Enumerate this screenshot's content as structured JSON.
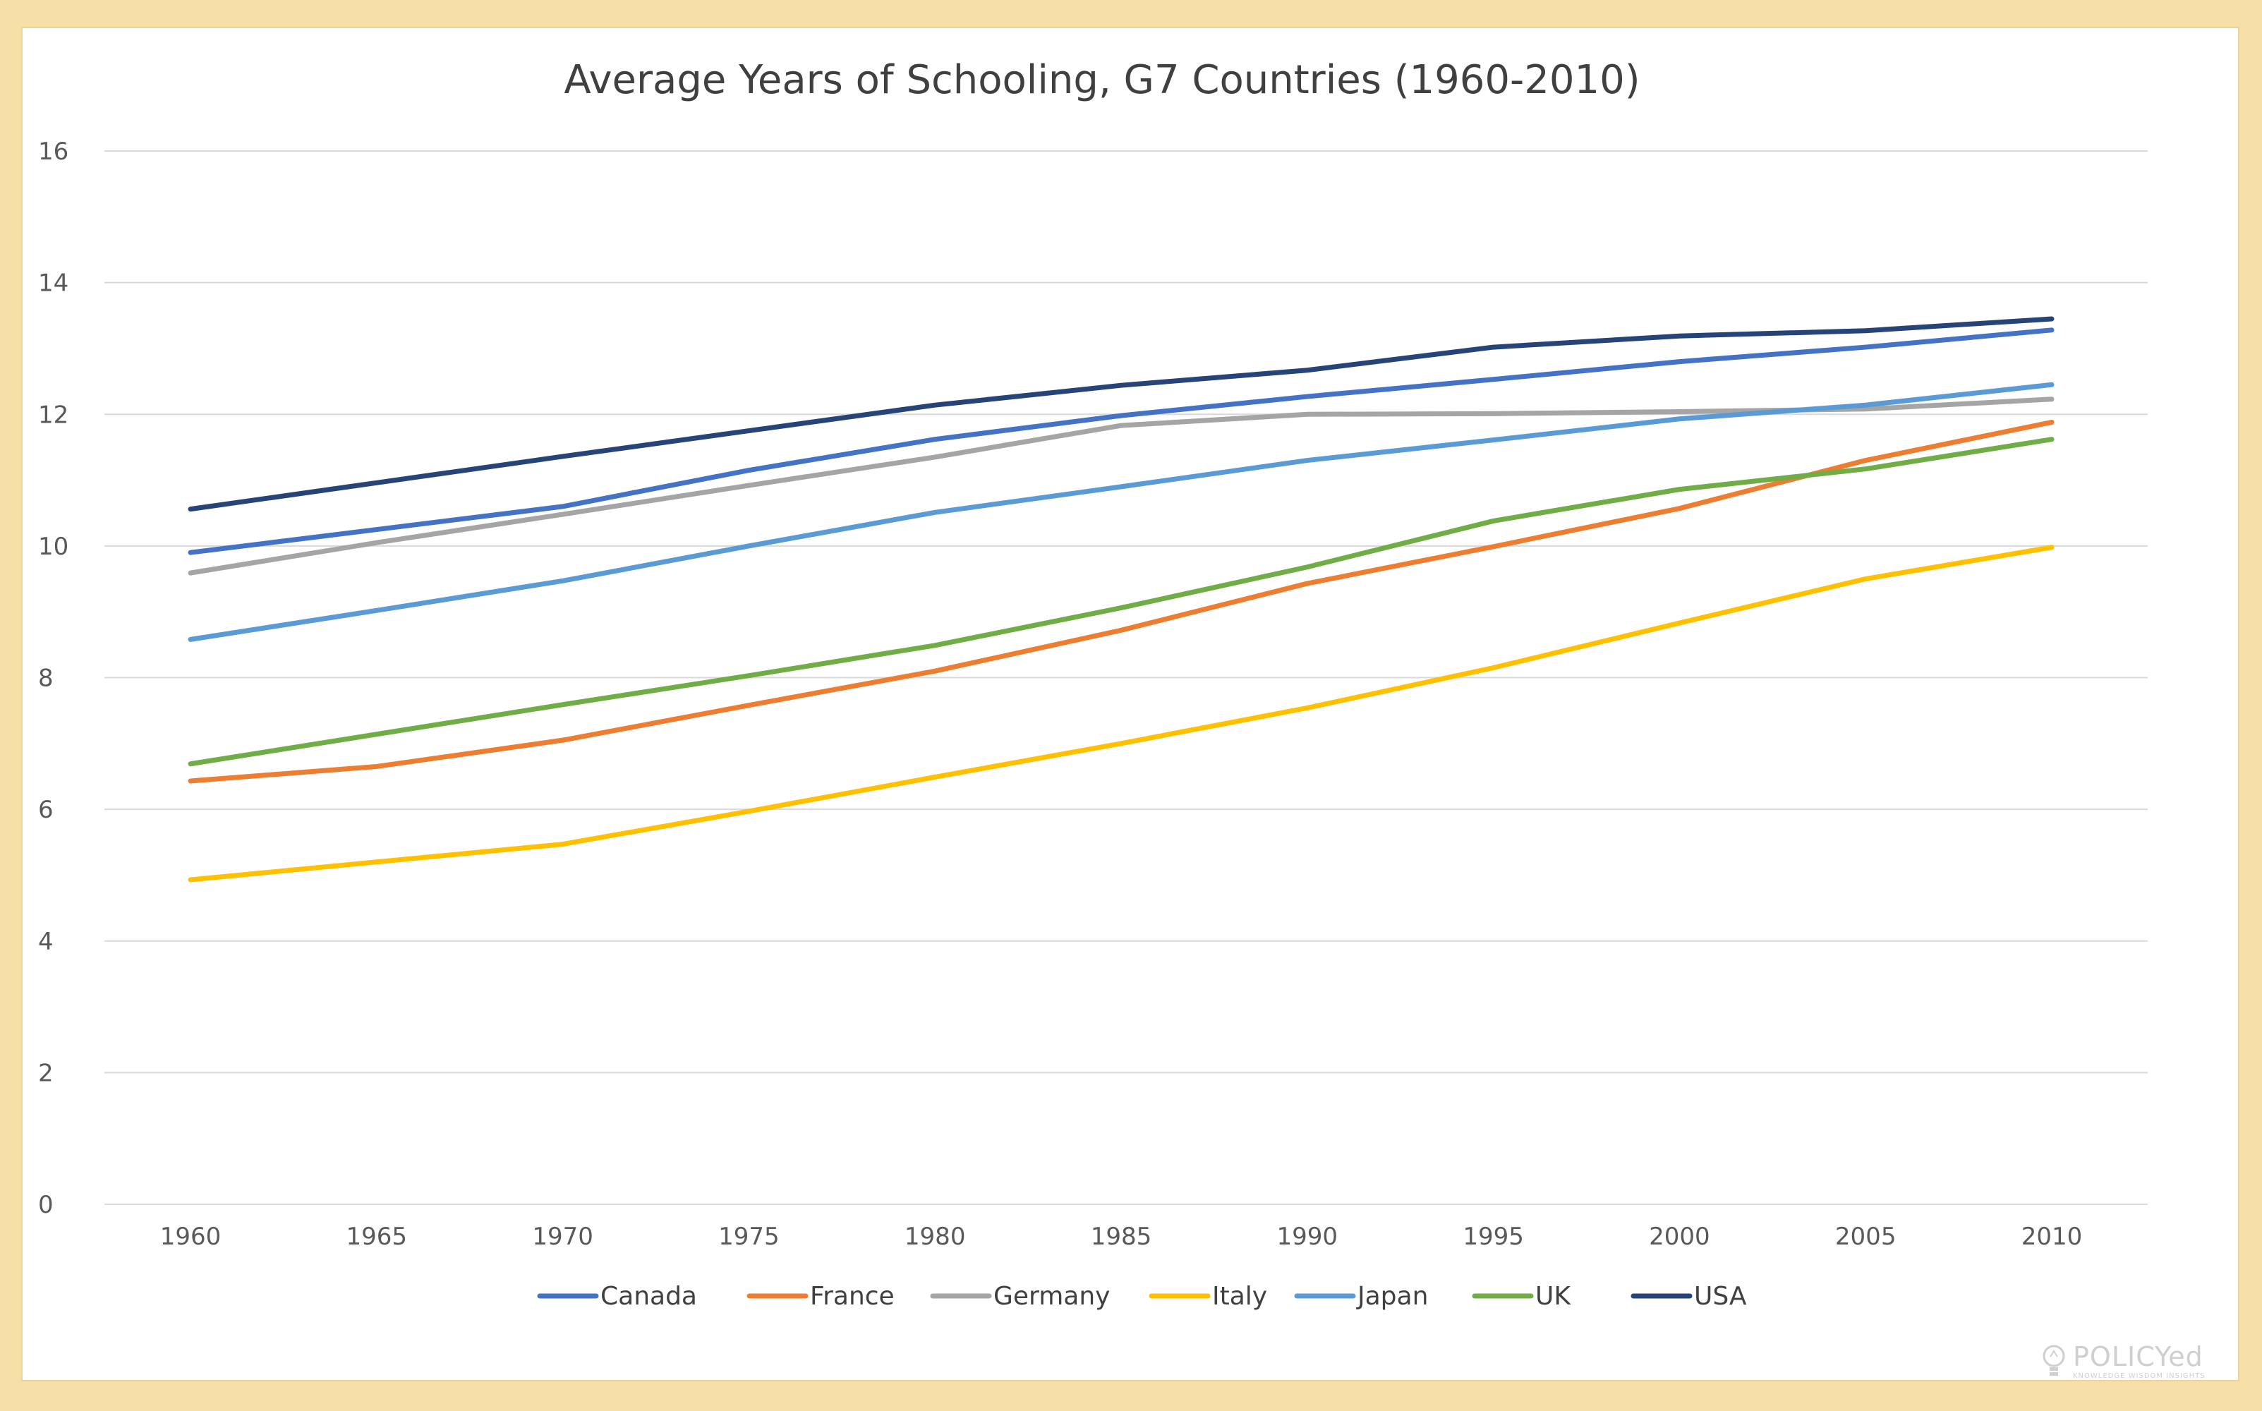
{
  "chart_data": {
    "type": "line",
    "title": "Average Years of Schooling, G7 Countries (1960-2010)",
    "xlabel": "",
    "ylabel": "",
    "x": [
      "1960",
      "1965",
      "1970",
      "1975",
      "1980",
      "1985",
      "1990",
      "1995",
      "2000",
      "2005",
      "2010"
    ],
    "ylim": [
      0,
      16
    ],
    "yticks": [
      "0",
      "2",
      "4",
      "6",
      "8",
      "10",
      "12",
      "14",
      "16"
    ],
    "grid": true,
    "legend_position": "bottom",
    "series": [
      {
        "name": "Canada",
        "color": "#4472c4",
        "values": [
          9.9,
          10.25,
          10.6,
          11.15,
          11.62,
          11.98,
          12.27,
          12.53,
          12.8,
          13.02,
          13.28
        ]
      },
      {
        "name": "France",
        "color": "#ed7d31",
        "values": [
          6.43,
          6.65,
          7.05,
          7.58,
          8.1,
          8.72,
          9.43,
          9.99,
          10.57,
          11.3,
          11.88
        ]
      },
      {
        "name": "Germany",
        "color": "#a5a5a5",
        "values": [
          9.59,
          10.05,
          10.48,
          10.92,
          11.35,
          11.83,
          12.0,
          12.01,
          12.04,
          12.08,
          12.23
        ]
      },
      {
        "name": "Italy",
        "color": "#ffc000",
        "values": [
          4.93,
          5.2,
          5.47,
          5.97,
          6.49,
          7.0,
          7.54,
          8.15,
          8.83,
          9.5,
          9.98
        ]
      },
      {
        "name": "Japan",
        "color": "#5b9bd5",
        "values": [
          8.58,
          9.02,
          9.47,
          10.0,
          10.51,
          10.9,
          11.3,
          11.61,
          11.93,
          12.14,
          12.45
        ]
      },
      {
        "name": "UK",
        "color": "#70ad47",
        "values": [
          6.69,
          7.14,
          7.59,
          8.03,
          8.49,
          9.06,
          9.68,
          10.38,
          10.86,
          11.17,
          11.62
        ]
      },
      {
        "name": "USA",
        "color": "#264478",
        "values": [
          10.56,
          10.96,
          11.36,
          11.75,
          12.14,
          12.44,
          12.67,
          13.02,
          13.19,
          13.27,
          13.45
        ]
      }
    ]
  },
  "logo": {
    "main": "POLICYed",
    "sub": "KNOWLEDGE WISDOM INSIGHTS"
  }
}
